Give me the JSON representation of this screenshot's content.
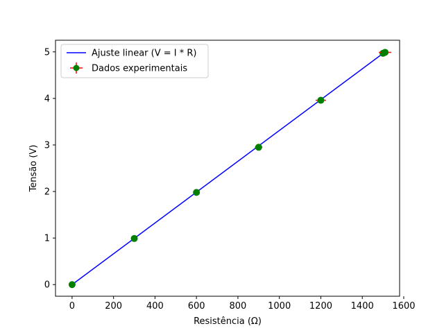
{
  "chart_data": {
    "type": "scatter",
    "xlabel": "Resistência (Ω)",
    "ylabel": "Tensão (V)",
    "xlim": [
      -80,
      1580
    ],
    "ylim": [
      -0.25,
      5.25
    ],
    "xticks": [
      0,
      200,
      400,
      600,
      800,
      1000,
      1200,
      1400,
      1600
    ],
    "yticks": [
      0,
      1,
      2,
      3,
      4,
      5
    ],
    "grid": false,
    "legend_position": "top-left",
    "series": [
      {
        "name": "Ajuste linear (V = I * R)",
        "kind": "line",
        "color": "#0000ff",
        "x": [
          0,
          1510
        ],
        "y": [
          0,
          5.0
        ]
      },
      {
        "name": "Dados experimentais",
        "kind": "errorbar",
        "marker_color": "#008000",
        "errorbar_color": "#ff0000",
        "points": [
          {
            "x": 0,
            "y": 0.0,
            "xerr": 0,
            "yerr": 0.02
          },
          {
            "x": 300,
            "y": 0.99,
            "xerr": 3,
            "yerr": 0.02
          },
          {
            "x": 600,
            "y": 1.98,
            "xerr": 6,
            "yerr": 0.03
          },
          {
            "x": 900,
            "y": 2.95,
            "xerr": 18,
            "yerr": 0.03
          },
          {
            "x": 1200,
            "y": 3.96,
            "xerr": 25,
            "yerr": 0.04
          },
          {
            "x": 1500,
            "y": 4.97,
            "xerr": 12,
            "yerr": 0.04
          },
          {
            "x": 1510,
            "y": 4.99,
            "xerr": 30,
            "yerr": 0.04
          }
        ]
      }
    ]
  }
}
